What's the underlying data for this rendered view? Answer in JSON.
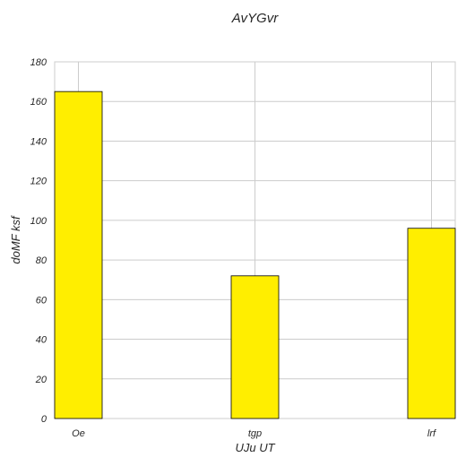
{
  "chart_data": {
    "type": "bar",
    "title": "AvYGvr",
    "xlabel": "UJu UT",
    "ylabel": "doMF ksf",
    "categories": [
      "Oe",
      "tgp",
      "lrf"
    ],
    "values": [
      165,
      72,
      96
    ],
    "ylim": [
      0,
      180
    ],
    "yticks": [
      0,
      20,
      40,
      60,
      80,
      100,
      120,
      140,
      160,
      180
    ],
    "grid": true,
    "bar_color": "#ffee00",
    "bar_edge_color": "#000000",
    "grid_color": "#cccccc"
  }
}
